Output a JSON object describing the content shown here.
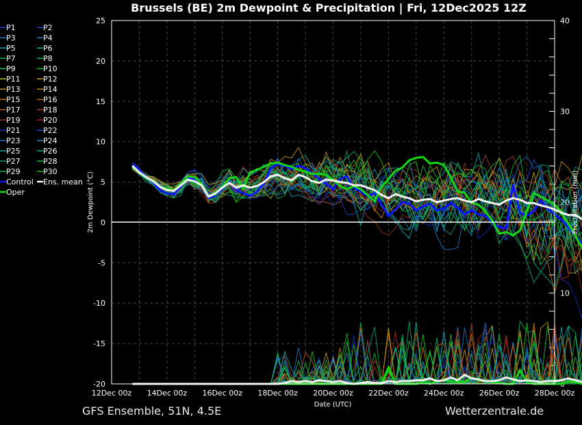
{
  "header": {
    "title": "Brussels  (BE)  2m Dewpoint & Precipitation | Fri, 12Dec2025 12Z"
  },
  "footer": {
    "left": "GFS Ensemble, 51N, 4.5E",
    "right": "Wetterzentrale.de"
  },
  "chart_data": {
    "type": "line",
    "title": "Brussels  (BE)  2m Dewpoint & Precipitation | Fri, 12Dec2025 12Z",
    "xlabel": "Date (UTC)",
    "ylabel": "2m Dewpoint (°C)",
    "y2label": "Precipitation (mm)",
    "ylim": [
      -20,
      25
    ],
    "y2lim": [
      0,
      40
    ],
    "yticks": [
      "25",
      "20",
      "15",
      "10",
      "5",
      "0",
      "-5",
      "-10",
      "-15",
      "-20"
    ],
    "y2ticks": [
      "40",
      "30",
      "20",
      "10",
      "0"
    ],
    "xticks": [
      "12Dec 00z",
      "14Dec 00z",
      "16Dec 00z",
      "18Dec 00z",
      "20Dec 00z",
      "22Dec 00z",
      "24Dec 00z",
      "26Dec 00z",
      "28Dec 00z"
    ],
    "x_start_hours": 18,
    "x_step_hours": 6,
    "grid": true,
    "legend_position": "left",
    "legend": [
      {
        "name": "P1",
        "color": "#1f3fbf"
      },
      {
        "name": "P2",
        "color": "#1f4fcf"
      },
      {
        "name": "P3",
        "color": "#1a78c0"
      },
      {
        "name": "P4",
        "color": "#1a8cc8"
      },
      {
        "name": "P5",
        "color": "#13a0b0"
      },
      {
        "name": "P6",
        "color": "#12a888"
      },
      {
        "name": "P7",
        "color": "#10a860"
      },
      {
        "name": "P8",
        "color": "#10b050"
      },
      {
        "name": "P9",
        "color": "#18c038"
      },
      {
        "name": "P10",
        "color": "#18c020"
      },
      {
        "name": "P11",
        "color": "#b8b828"
      },
      {
        "name": "P12",
        "color": "#c0a020"
      },
      {
        "name": "P13",
        "color": "#c09018"
      },
      {
        "name": "P14",
        "color": "#c08818"
      },
      {
        "name": "P15",
        "color": "#c07010"
      },
      {
        "name": "P16",
        "color": "#b86010"
      },
      {
        "name": "P17",
        "color": "#b85818"
      },
      {
        "name": "P18",
        "color": "#a84020"
      },
      {
        "name": "P19",
        "color": "#a03020"
      },
      {
        "name": "P20",
        "color": "#982020"
      },
      {
        "name": "P21",
        "color": "#1030c0"
      },
      {
        "name": "P22",
        "color": "#1050c8"
      },
      {
        "name": "P23",
        "color": "#1a70b8"
      },
      {
        "name": "P24",
        "color": "#1890c0"
      },
      {
        "name": "P25",
        "color": "#10a0a8"
      },
      {
        "name": "P26",
        "color": "#10a888"
      },
      {
        "name": "P27",
        "color": "#10a060"
      },
      {
        "name": "P28",
        "color": "#12b048"
      },
      {
        "name": "P29",
        "color": "#18b830"
      },
      {
        "name": "P30",
        "color": "#18c018"
      },
      {
        "name": "Control",
        "color": "#0a14ff"
      },
      {
        "name": "Ens. mean",
        "color": "#ffffff"
      },
      {
        "name": "Oper",
        "color": "#14d814"
      }
    ],
    "series": [
      {
        "name": "Ens. mean",
        "values": [
          7.0,
          6.2,
          5.6,
          5.1,
          4.4,
          4.0,
          3.9,
          4.6,
          5.3,
          5.1,
          4.6,
          3.2,
          3.6,
          4.3,
          4.9,
          4.3,
          4.6,
          4.3,
          4.5,
          5.0,
          5.7,
          5.9,
          5.5,
          5.2,
          5.9,
          5.6,
          5.1,
          4.9,
          5.3,
          5.2,
          5.0,
          4.9,
          4.6,
          4.6,
          4.3,
          4.0,
          3.4,
          3.0,
          3.5,
          3.2,
          3.0,
          2.6,
          2.8,
          2.9,
          2.5,
          2.7,
          2.9,
          3.0,
          2.7,
          2.5,
          2.9,
          2.6,
          2.4,
          2.2,
          2.7,
          3.0,
          2.8,
          2.4,
          2.4,
          2.1,
          1.9,
          1.6,
          1.2,
          0.9,
          0.9,
          0.4,
          -0.3,
          -0.3,
          0.0
        ]
      },
      {
        "name": "Control",
        "values": [
          7.2,
          6.4,
          5.6,
          5.0,
          4.0,
          3.6,
          3.5,
          4.4,
          5.5,
          5.3,
          4.7,
          3.0,
          3.3,
          4.2,
          5.0,
          4.0,
          3.6,
          3.3,
          3.8,
          4.8,
          6.7,
          7.2,
          7.0,
          6.6,
          7.0,
          6.7,
          6.0,
          5.4,
          4.8,
          4.1,
          5.4,
          5.7,
          4.3,
          3.8,
          3.3,
          3.6,
          2.2,
          0.8,
          1.6,
          2.5,
          2.3,
          1.5,
          2.0,
          2.3,
          1.5,
          1.7,
          2.4,
          1.8,
          1.0,
          1.5,
          1.0,
          0.8,
          0.0,
          -0.6,
          -0.7,
          4.7,
          1.2,
          0.8,
          1.4,
          2.7,
          1.7,
          1.0,
          0.3,
          -0.6,
          -1.7,
          -2.6,
          -3.6,
          -3.3,
          -2.2
        ]
      },
      {
        "name": "Oper",
        "values": [
          6.8,
          6.1,
          5.5,
          5.2,
          4.4,
          4.2,
          4.0,
          4.8,
          5.7,
          5.6,
          4.8,
          3.2,
          3.5,
          4.4,
          5.5,
          5.6,
          4.2,
          6.2,
          6.5,
          6.9,
          7.3,
          7.4,
          7.1,
          6.9,
          6.5,
          6.3,
          6.0,
          6.0,
          5.9,
          5.3,
          4.5,
          4.1,
          4.5,
          4.1,
          3.4,
          2.6,
          4.4,
          5.4,
          6.4,
          6.8,
          7.7,
          8.0,
          8.1,
          7.3,
          7.4,
          7.1,
          5.6,
          3.8,
          3.7,
          2.4,
          2.2,
          1.4,
          0.2,
          -1.4,
          -1.2,
          -1.6,
          -1.0,
          1.4,
          3.6,
          3.2,
          2.7,
          2.2,
          1.1,
          -0.2,
          -1.7,
          -3.2,
          -4.8,
          -5.5,
          -5.6
        ]
      },
      {
        "name": "Precip Ens. mean",
        "axis": "y2",
        "values": [
          0,
          0,
          0,
          0,
          0,
          0,
          0,
          0,
          0,
          0,
          0,
          0,
          0,
          0,
          0,
          0,
          0,
          0,
          0,
          0,
          0,
          0,
          0.1,
          0.3,
          0.2,
          0.3,
          0.2,
          0.4,
          0.3,
          0.2,
          0.3,
          0.1,
          0.0,
          0.1,
          0.2,
          0.1,
          0.1,
          0.3,
          0.2,
          0.3,
          0.3,
          0.4,
          0.4,
          0.6,
          0.3,
          0.4,
          0.7,
          0.4,
          1.0,
          0.6,
          0.5,
          0.3,
          0.3,
          0.4,
          0.7,
          0.5,
          0.3,
          0.4,
          0.3,
          0.2,
          0.3,
          0.3,
          0.4,
          0.6,
          0.4,
          0.2,
          0.5,
          0.6,
          0.3
        ]
      },
      {
        "name": "Precip Oper",
        "axis": "y2",
        "values": [
          0,
          0,
          0,
          0,
          0,
          0,
          0,
          0,
          0,
          0,
          0,
          0,
          0,
          0,
          0,
          0,
          0,
          0,
          0,
          0,
          0,
          0,
          0,
          0,
          0,
          0,
          0,
          0,
          0,
          0,
          0,
          0,
          0,
          0,
          0,
          0,
          0,
          1.8,
          0,
          0,
          0,
          0,
          0.2,
          0,
          0.3,
          0.4,
          0.3,
          0.2,
          0.2,
          0.7,
          0.4,
          0.3,
          0.2,
          0.1,
          0,
          0,
          1.5,
          0.2,
          0,
          0,
          0,
          0,
          0,
          0.3,
          0.2,
          0,
          0,
          0,
          0
        ]
      }
    ]
  }
}
